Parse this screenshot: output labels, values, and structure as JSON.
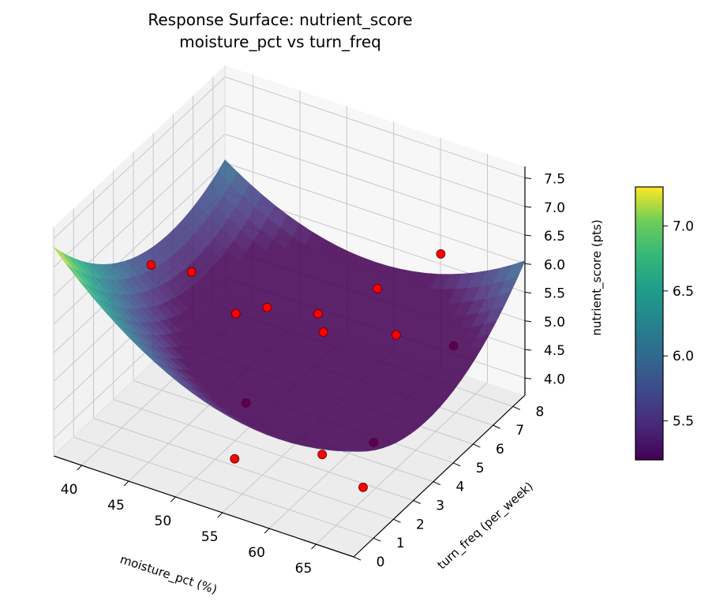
{
  "chart_data": {
    "type": "surface3d",
    "title_line1": "Response Surface: nutrient_score",
    "title_line2": "moisture_pct vs turn_freq",
    "xlabel": "moisture_pct (%)",
    "ylabel": "turn_freq (per_week)",
    "zlabel": "nutrient_score (pts)",
    "xlim": [
      37,
      69
    ],
    "ylim": [
      0,
      8.6
    ],
    "zlim": [
      3.7,
      7.7
    ],
    "x_ticks": [
      "40",
      "45",
      "50",
      "55",
      "60",
      "65"
    ],
    "y_ticks": [
      "0",
      "1",
      "2",
      "3",
      "4",
      "5",
      "6",
      "7",
      "8"
    ],
    "z_ticks": [
      "4.0",
      "4.5",
      "5.0",
      "5.5",
      "6.0",
      "6.5",
      "7.0",
      "7.5"
    ],
    "surface_corners": {
      "x_min_y_min": 7.35,
      "x_max_y_min": 5.55,
      "x_min_y_max": 6.05,
      "x_max_y_max": 6.05,
      "minimum": 5.2
    },
    "colorbar": {
      "colormap": "viridis",
      "min": 5.2,
      "max": 7.3,
      "ticks": [
        "5.5",
        "6.0",
        "6.5",
        "7.0"
      ]
    },
    "points": [
      {
        "x": 44,
        "y": 1.6,
        "z": 6.9
      },
      {
        "x": 43,
        "y": 4.1,
        "z": 5.9
      },
      {
        "x": 49,
        "y": 3.5,
        "z": 5.7
      },
      {
        "x": 50,
        "y": 4.6,
        "z": 5.5
      },
      {
        "x": 55,
        "y": 4.8,
        "z": 5.6
      },
      {
        "x": 56,
        "y": 4.6,
        "z": 5.4
      },
      {
        "x": 59,
        "y": 5.9,
        "z": 5.9
      },
      {
        "x": 61,
        "y": 5.9,
        "z": 5.2
      },
      {
        "x": 63,
        "y": 7.2,
        "z": 6.3
      },
      {
        "x": 65,
        "y": 6.9,
        "z": 4.9
      },
      {
        "x": 52,
        "y": 2.6,
        "z": 4.6
      },
      {
        "x": 51,
        "y": 2.5,
        "z": 3.6
      },
      {
        "x": 58,
        "y": 3.6,
        "z": 3.7
      },
      {
        "x": 62,
        "y": 4.3,
        "z": 3.9
      },
      {
        "x": 63,
        "y": 3.3,
        "z": 3.5
      }
    ],
    "point_color": "#ff0000"
  }
}
